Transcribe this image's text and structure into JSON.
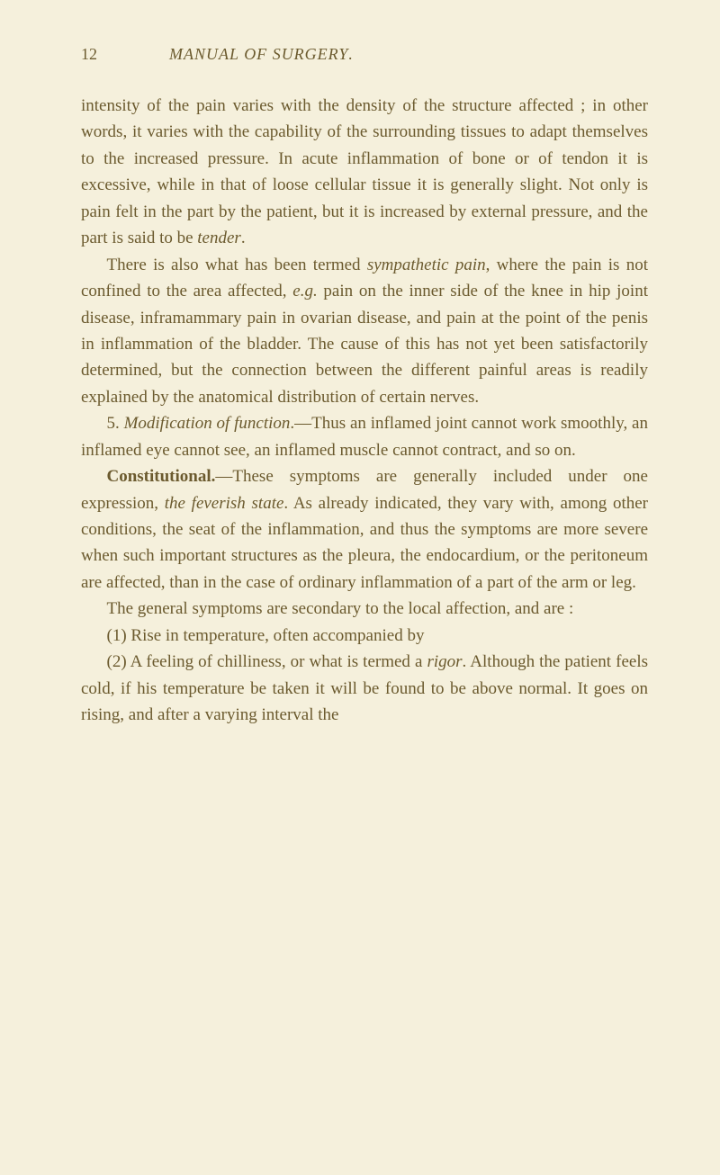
{
  "page_number": "12",
  "running_title_prefix": "M",
  "running_title_word1": "ANUAL",
  "running_title_of": " OF ",
  "running_title_prefix2": "S",
  "running_title_word2": "URGERY",
  "running_title_period": ".",
  "p1_a": "intensity of the pain varies with the density of the structure affected ; in other words, it varies with the capability of the surrounding tissues to adapt themselves to the increased pressure. In acute inflammation of bone or of tendon it is excessive, while in that of loose cellular tissue it is generally slight. Not only is pain felt in the part by the patient, but it is increased by external pressure, and the part is said to be ",
  "p1_tender": "tender",
  "p1_b": ".",
  "p2_a": "There is also what has been termed ",
  "p2_sympathetic": "sympathetic pain",
  "p2_b": ", where the pain is not confined to the area affected, ",
  "p2_eg": "e.g.",
  "p2_c": " pain on the inner side of the knee in hip joint disease, inframammary pain in ovarian disease, and pain at the point of the penis in inflammation of the bladder. The cause of this has not yet been satisfactorily determined, but the connection between the different painful areas is readily explained by the anatomical distribution of certain nerves.",
  "p3_a": "5. ",
  "p3_modification": "Modification of function",
  "p3_b": ".—Thus an inflamed joint cannot work smoothly, an inflamed eye cannot see, an inflamed muscle cannot contract, and so on.",
  "p4_constitutional": "Constitutional.",
  "p4_a": "—These symptoms are generally included under one expression, ",
  "p4_feverish": "the feverish state",
  "p4_b": ". As already indicated, they vary with, among other conditions, the seat of the inflammation, and thus the symptoms are more severe when such important structures as the pleura, the endocardium, or the peritoneum are affected, than in the case of ordinary inflammation of a part of the arm or leg.",
  "p5_a": "The general symptoms are secondary to the local affection, and are :",
  "p6_a": "(1) Rise in temperature, often accompanied by",
  "p7_a": "(2) A feeling of chilliness, or what is termed a ",
  "p7_rigor": "rigor",
  "p7_b": ". Although the patient feels cold, if his temperature be taken it will be found to be above normal. It goes on rising, and after a varying interval the",
  "colors": {
    "background": "#f5f0dc",
    "text": "#6b5a2e"
  },
  "typography": {
    "body_fontsize": 19,
    "header_fontsize": 18,
    "line_height": 1.55,
    "font_family": "Georgia, Times New Roman, serif"
  }
}
